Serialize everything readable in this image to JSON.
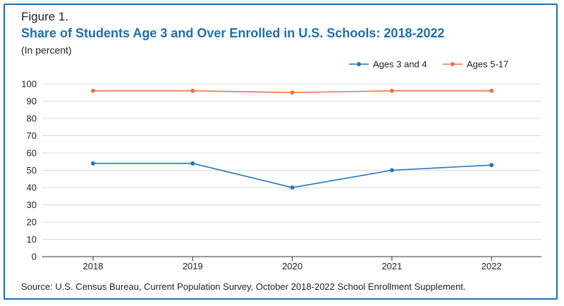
{
  "figure_label": "Figure 1.",
  "title": "Share of Students Age 3 and Over Enrolled in U.S. Schools: 2018-2022",
  "subtitle": "(In percent)",
  "source": "Source: U.S. Census Bureau, Current Population Survey, October 2018-2022 School Enrollment Supplement.",
  "colors": {
    "frame": "#1f6fb4",
    "title": "#1b6fb0"
  },
  "chart_data": {
    "type": "line",
    "x": [
      "2018",
      "2019",
      "2020",
      "2021",
      "2022"
    ],
    "series": [
      {
        "name": "Ages 3 and 4",
        "values": [
          54,
          54,
          40,
          50,
          53
        ],
        "color": "#1f77b8"
      },
      {
        "name": "Ages 5-17",
        "values": [
          96,
          96,
          95,
          96,
          96
        ],
        "color": "#e8734a"
      }
    ],
    "ylim": [
      0,
      100
    ],
    "yticks": [
      0,
      10,
      20,
      30,
      40,
      50,
      60,
      70,
      80,
      90,
      100
    ],
    "grid": true,
    "legend": "top-right",
    "title": "Share of Students Age 3 and Over Enrolled in U.S. Schools: 2018-2022",
    "xlabel": "",
    "ylabel": "(In percent)"
  }
}
